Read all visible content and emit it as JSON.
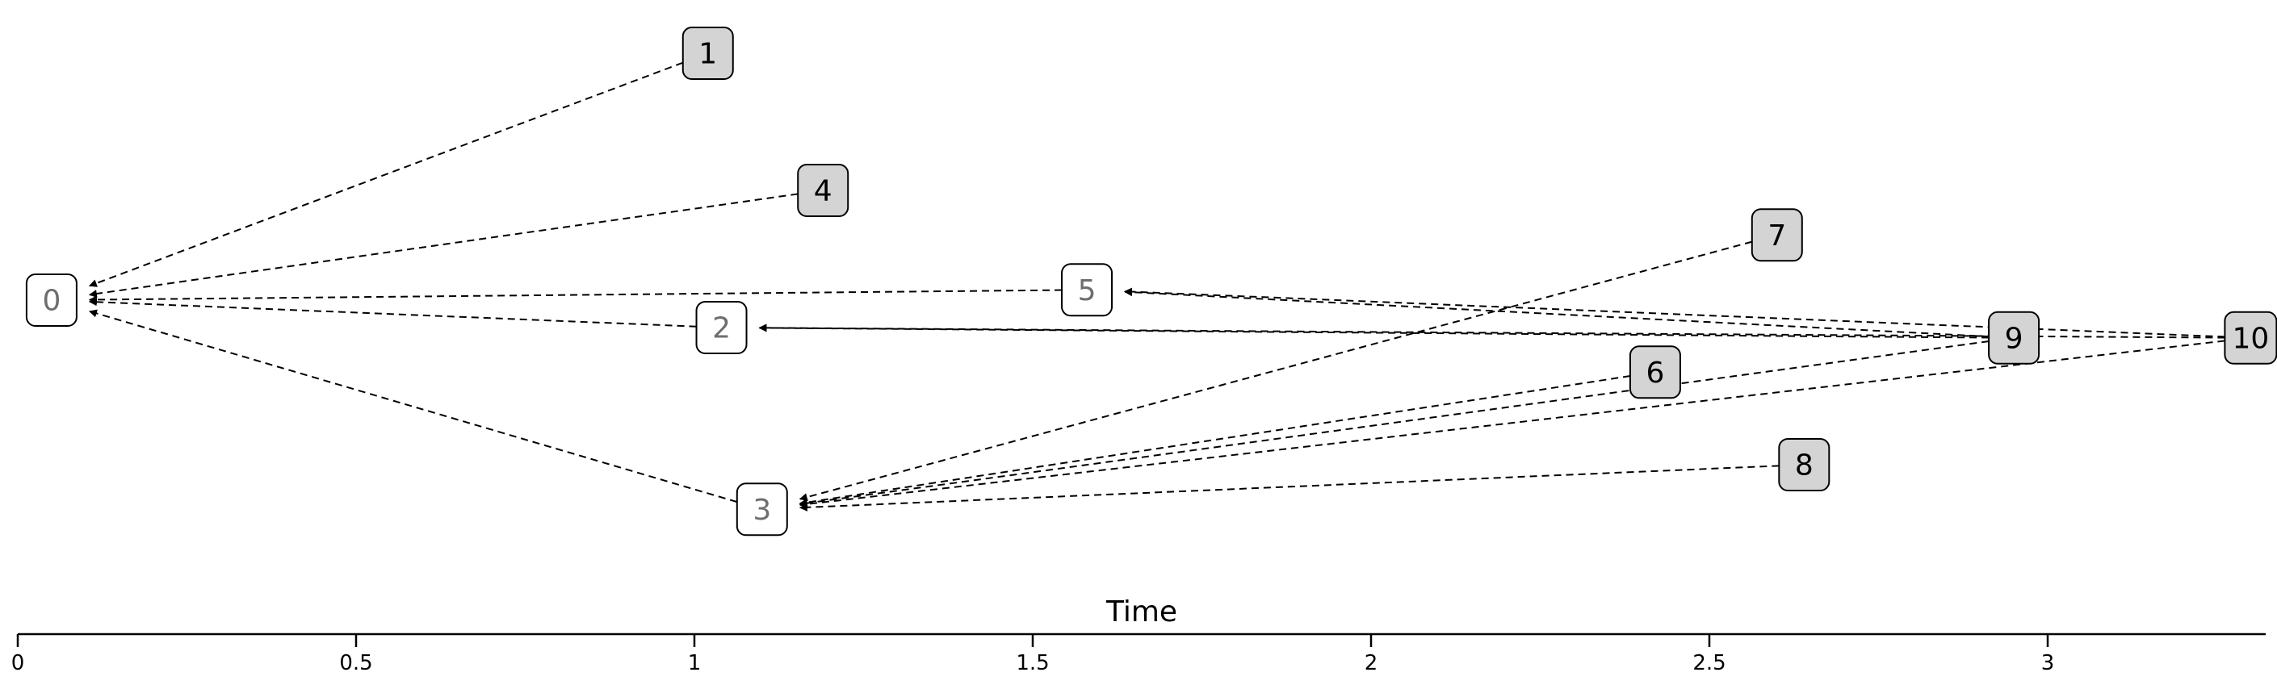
{
  "axis": {
    "label": "Time",
    "ticks": [
      0,
      0.5,
      1,
      1.5,
      2,
      2.5,
      3
    ],
    "tick_labels": [
      "0",
      "0.5",
      "1",
      "1.5",
      "2",
      "2.5",
      "3"
    ],
    "range": [
      0,
      3.32
    ]
  },
  "colors": {
    "shaded_fill": "#d4d4d4",
    "plain_fill": "#ffffff",
    "muted_text": "#6e6e6e",
    "dark_text": "#000000"
  },
  "nodes": [
    {
      "id": "0",
      "label": "0",
      "time": 0.05,
      "row": 0.0,
      "shaded": false,
      "muted": true
    },
    {
      "id": "1",
      "label": "1",
      "time": 1.02,
      "row": -3.6,
      "shaded": true,
      "muted": false
    },
    {
      "id": "2",
      "label": "2",
      "time": 1.04,
      "row": 0.4,
      "shaded": false,
      "muted": true
    },
    {
      "id": "3",
      "label": "3",
      "time": 1.1,
      "row": 3.05,
      "shaded": false,
      "muted": true
    },
    {
      "id": "4",
      "label": "4",
      "time": 1.19,
      "row": -1.6,
      "shaded": true,
      "muted": false
    },
    {
      "id": "5",
      "label": "5",
      "time": 1.58,
      "row": -0.15,
      "shaded": false,
      "muted": true
    },
    {
      "id": "6",
      "label": "6",
      "time": 2.42,
      "row": 1.05,
      "shaded": true,
      "muted": false
    },
    {
      "id": "7",
      "label": "7",
      "time": 2.6,
      "row": -0.95,
      "shaded": true,
      "muted": false
    },
    {
      "id": "8",
      "label": "8",
      "time": 2.64,
      "row": 2.4,
      "shaded": true,
      "muted": false
    },
    {
      "id": "9",
      "label": "9",
      "time": 2.95,
      "row": 0.55,
      "shaded": true,
      "muted": false
    },
    {
      "id": "10",
      "label": "10",
      "time": 3.3,
      "row": 0.55,
      "shaded": true,
      "muted": false
    }
  ],
  "edges": [
    {
      "from": "1",
      "to": "0"
    },
    {
      "from": "4",
      "to": "0"
    },
    {
      "from": "5",
      "to": "0"
    },
    {
      "from": "2",
      "to": "0"
    },
    {
      "from": "3",
      "to": "0"
    },
    {
      "from": "9",
      "to": "5"
    },
    {
      "from": "10",
      "to": "5"
    },
    {
      "from": "9",
      "to": "2"
    },
    {
      "from": "10",
      "to": "2"
    },
    {
      "from": "7",
      "to": "3"
    },
    {
      "from": "6",
      "to": "3"
    },
    {
      "from": "9",
      "to": "3"
    },
    {
      "from": "10",
      "to": "3"
    },
    {
      "from": "8",
      "to": "3"
    }
  ]
}
